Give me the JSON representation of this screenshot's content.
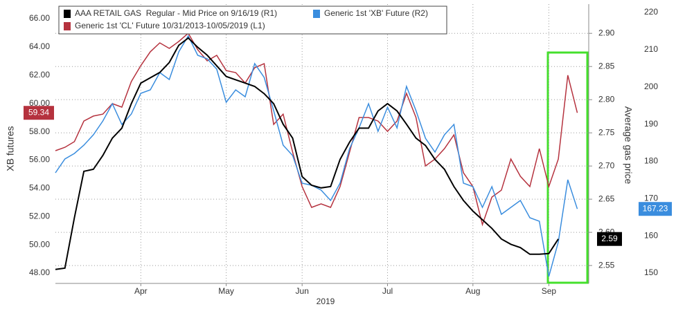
{
  "chart_data": {
    "type": "line",
    "legend": "upper left",
    "grid": true,
    "ylabel": "XB futures",
    "y2label": "Average gas price",
    "x_label": "2019",
    "categories": [
      null,
      null,
      null,
      null,
      null,
      null,
      null,
      null,
      null,
      "Apr",
      null,
      null,
      null,
      null,
      null,
      null,
      null,
      null,
      "May",
      null,
      null,
      null,
      null,
      null,
      null,
      null,
      "Jun",
      null,
      null,
      null,
      null,
      null,
      null,
      null,
      null,
      "Jul",
      null,
      null,
      null,
      null,
      null,
      null,
      null,
      null,
      "Aug",
      null,
      null,
      null,
      null,
      null,
      null,
      null,
      "Sep",
      null,
      null,
      null
    ],
    "ylim": [
      47.27,
      67.03
    ],
    "yticks": [
      {
        "value": 48,
        "label": "48.00"
      },
      {
        "value": 50,
        "label": "50.00"
      },
      {
        "value": 52,
        "label": "52.00"
      },
      {
        "value": 54,
        "label": "54.00"
      },
      {
        "value": 56,
        "label": "56.00"
      },
      {
        "value": 58,
        "label": "58.00"
      },
      {
        "value": 60,
        "label": "60.00"
      },
      {
        "value": 62,
        "label": "62.00"
      },
      {
        "value": 64,
        "label": "64.00"
      },
      {
        "value": 66,
        "label": "66.00"
      }
    ],
    "y2lim": [
      2.523,
      2.944
    ],
    "y2ticks": [
      2.55,
      {
        "value": 2.6,
        "label": "2.60"
      },
      2.65,
      {
        "value": 2.7,
        "label": "2.70"
      },
      2.75,
      {
        "value": 2.8,
        "label": "2.80"
      },
      2.85,
      {
        "value": 2.9,
        "label": "2.90"
      }
    ],
    "y3lim": [
      147.22,
      222.23
    ],
    "y3ticks": [
      150,
      160,
      170,
      180,
      190,
      200,
      210,
      220
    ],
    "series": [
      {
        "name": "AAA RETAIL GAS  Regular - Mid Price on 9/16/19 (R1)",
        "color": "#000000",
        "axis": "y2",
        "values": [
          2.544,
          2.546,
          2.622,
          2.692,
          2.695,
          2.716,
          2.742,
          2.757,
          2.794,
          2.825,
          2.833,
          2.841,
          2.856,
          2.882,
          2.893,
          2.879,
          2.867,
          2.851,
          2.835,
          2.83,
          2.825,
          2.82,
          2.809,
          2.794,
          2.763,
          2.742,
          2.684,
          2.671,
          2.667,
          2.669,
          2.71,
          2.736,
          2.757,
          2.757,
          2.783,
          2.794,
          2.783,
          2.763,
          2.742,
          2.731,
          2.71,
          2.695,
          2.669,
          2.648,
          2.632,
          2.619,
          2.606,
          2.59,
          2.582,
          2.577,
          2.567,
          2.567,
          2.568,
          2.59,
          null,
          null
        ]
      },
      {
        "name": "Generic 1st 'XB' Future (R2)",
        "color": "#3a8dde",
        "axis": "y3",
        "values": [
          176.92,
          180.64,
          182.12,
          184.35,
          187.14,
          190.85,
          195.49,
          189.92,
          192.71,
          198.28,
          199.21,
          203.85,
          201.99,
          209.42,
          213.69,
          208.49,
          207.56,
          204.78,
          195.86,
          199.21,
          197.35,
          206.26,
          202.55,
          193.64,
          184.35,
          181.57,
          174.14,
          173.58,
          172.28,
          169.5,
          174.14,
          183.42,
          189.0,
          195.49,
          188.07,
          194.56,
          189.0,
          200.13,
          193.64,
          186.21,
          182.5,
          187.14,
          189.92,
          174.14,
          173.21,
          167.64,
          173.21,
          165.78,
          167.64,
          169.5,
          164.86,
          163.93,
          149.08,
          158.36,
          175.07,
          167.23
        ]
      },
      {
        "name": "Generic 1st 'CL' Future 10/31/2013-10/05/2019 (L1)",
        "color": "#b5323e",
        "axis": "y",
        "values": [
          56.66,
          56.9,
          57.3,
          58.76,
          59.11,
          59.25,
          59.99,
          59.74,
          61.55,
          62.68,
          63.66,
          64.29,
          63.9,
          64.39,
          64.97,
          63.8,
          63.02,
          63.41,
          62.33,
          62.19,
          61.45,
          62.53,
          62.82,
          58.52,
          59.25,
          56.56,
          54.12,
          52.65,
          52.9,
          52.65,
          54.12,
          56.56,
          59.01,
          59.01,
          58.76,
          58.03,
          58.76,
          60.72,
          59.01,
          55.58,
          56.07,
          56.81,
          57.78,
          55.1,
          54.12,
          51.43,
          53.38,
          53.87,
          56.07,
          54.85,
          54.12,
          56.81,
          54.12,
          56.07,
          62.0,
          59.34
        ]
      }
    ]
  }
}
